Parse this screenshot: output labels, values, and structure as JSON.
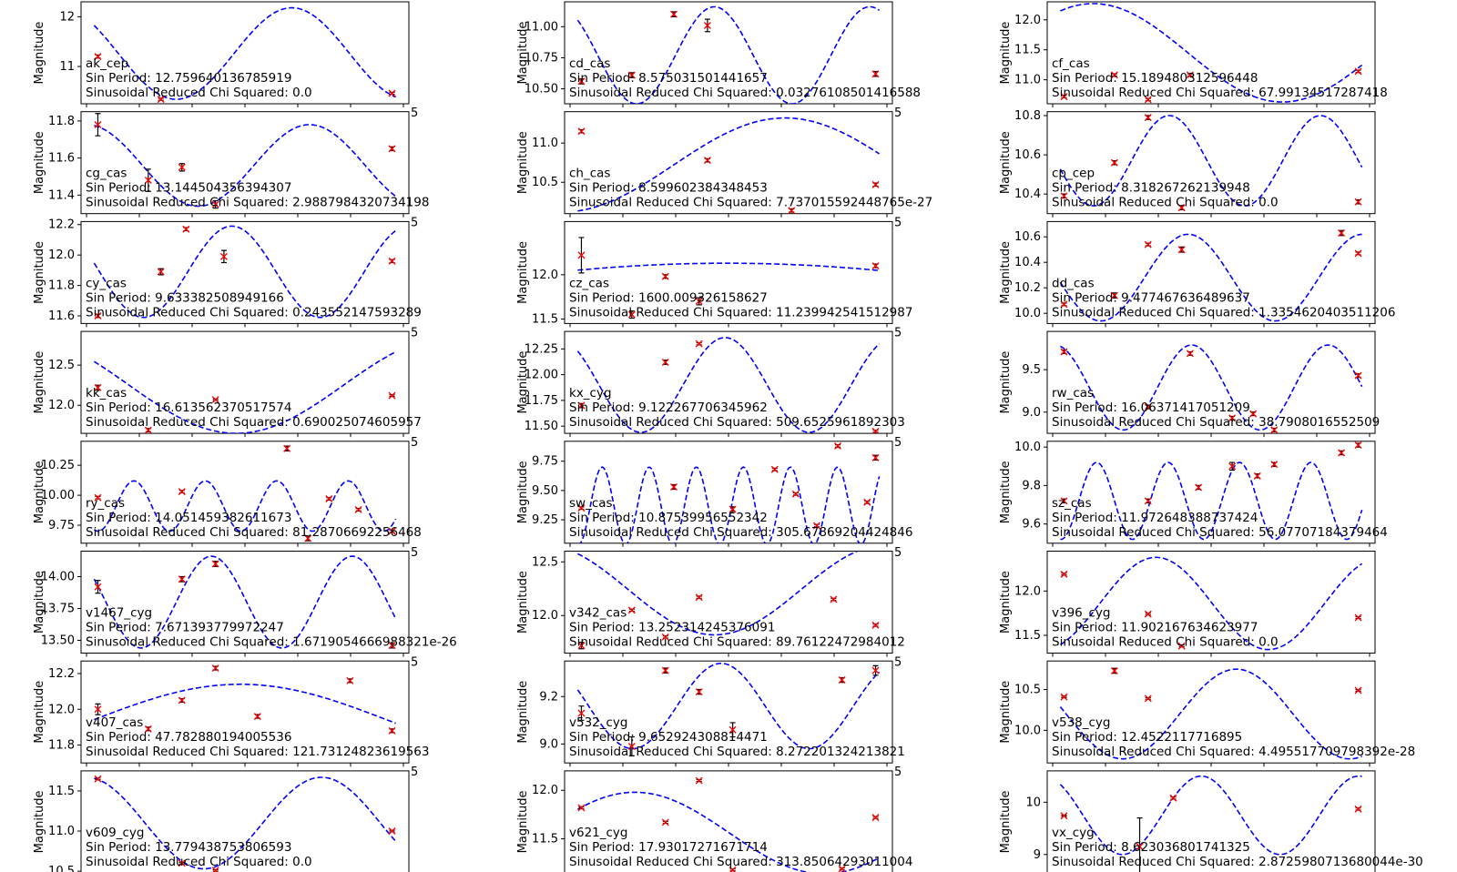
{
  "figure": {
    "ylabel": "Magnitude",
    "colors": {
      "model": "#0000ff",
      "points": "#ff0000",
      "errorbar": "#000000",
      "axes": "#000000"
    },
    "axis_corner_label": "5",
    "marker": "x-cross",
    "model_style": "dashed-sinusoid"
  },
  "chart_data": [
    {
      "type": "scatter",
      "star": "ak_cep",
      "period_text": "Sin Period: 12.759640136785919",
      "chi_text": "Sinusoidal Reduced Chi Squared: 0.0",
      "x": [
        0,
        1.5,
        7
      ],
      "y": [
        11.2,
        10.34,
        10.46
      ],
      "err": [
        0.03,
        0.02,
        0.02
      ],
      "ylim": [
        10.25,
        12.3
      ],
      "yticks": [
        11,
        12
      ],
      "ytick_labels": [
        "11",
        "12"
      ],
      "model": {
        "period": 5.5,
        "amp": 0.92,
        "mean": 11.26,
        "phase": -3.7
      }
    },
    {
      "type": "scatter",
      "star": "cd_cas",
      "period_text": "Sin Period: 8.57503150144165​7",
      "chi_text": "Sinusoidal Reduced Chi Squared: 0.0327610850141658​8",
      "x": [
        0,
        1.2,
        2.2,
        3.0,
        7.0
      ],
      "y": [
        10.56,
        10.61,
        11.1,
        11.01,
        10.62
      ],
      "err": [
        0.02,
        0.02,
        0.02,
        0.05,
        0.02
      ],
      "ylim": [
        10.38,
        11.2
      ],
      "yticks": [
        10.5,
        10.75,
        11.0
      ],
      "ytick_labels": [
        "10.50",
        "10.75",
        "11.00"
      ],
      "model": {
        "period": 3.7,
        "amp": 0.39,
        "mean": 10.77,
        "phase": -3.8
      }
    },
    {
      "type": "scatter",
      "star": "cf_cas",
      "period_text": "Sin Period: 15.189480312596448",
      "chi_text": "Sinusoidal Reduced Chi Squared: 67.99134517287418",
      "x": [
        0,
        1.2,
        2.0,
        3.0,
        7.0
      ],
      "y": [
        10.72,
        11.08,
        10.67,
        11.08,
        11.14
      ],
      "err": [
        0.02,
        0.02,
        0.02,
        0.02,
        0.02
      ],
      "ylim": [
        10.6,
        12.3
      ],
      "yticks": [
        11.0,
        11.5,
        12.0
      ],
      "ytick_labels": [
        "11.0",
        "11.5",
        "12.0"
      ],
      "model": {
        "period": 9.0,
        "amp": 0.82,
        "mean": 11.45,
        "phase": -5.2
      }
    },
    {
      "type": "scatter",
      "star": "cg_cas",
      "period_text": "Sin Period: 13.144504356394307",
      "chi_text": "Sinusoidal Reduced Chi Squared: 2.9887984320734198",
      "x": [
        0,
        1.2,
        2.0,
        2.8,
        7.0
      ],
      "y": [
        11.78,
        11.48,
        11.55,
        11.35,
        11.65
      ],
      "err": [
        0.06,
        0.06,
        0.02,
        0.02,
        0.01
      ],
      "ylim": [
        11.3,
        11.85
      ],
      "yticks": [
        11.4,
        11.6,
        11.8
      ],
      "ytick_labels": [
        "11.4",
        "11.6",
        "11.8"
      ],
      "model": {
        "period": 5.3,
        "amp": 0.22,
        "mean": 11.56,
        "phase": -4.4
      }
    },
    {
      "type": "scatter",
      "star": "ch_cas",
      "period_text": "Sin Period: 8.599602384348453",
      "chi_text": "Sinusoidal Reduced Chi Squared: 7.737015592448765e-27",
      "x": [
        0,
        3.0,
        5.0,
        7.0
      ],
      "y": [
        11.15,
        10.78,
        10.14,
        10.47
      ],
      "err": [
        0.02,
        0.02,
        0.02,
        0.02
      ],
      "ylim": [
        10.1,
        11.4
      ],
      "yticks": [
        10.5,
        11.0
      ],
      "ytick_labels": [
        "10.5",
        "11.0"
      ],
      "model": {
        "period": 10.6,
        "amp": 0.6,
        "mean": 10.72,
        "phase": -1.3
      }
    },
    {
      "type": "scatter",
      "star": "cp_cep",
      "period_text": "Sin Period: 8.318267262139948",
      "chi_text": "Sinusoidal Reduced Chi Squared: 0.0",
      "x": [
        0,
        1.2,
        2.0,
        2.8,
        7.0
      ],
      "y": [
        10.39,
        10.56,
        10.79,
        10.33,
        10.36
      ],
      "err": [
        0.01,
        0.01,
        0.01,
        0.01,
        0.01
      ],
      "ylim": [
        10.3,
        10.82
      ],
      "yticks": [
        10.4,
        10.6,
        10.8
      ],
      "ytick_labels": [
        "10.4",
        "10.6",
        "10.8"
      ],
      "model": {
        "period": 3.6,
        "amp": 0.23,
        "mean": 10.57,
        "phase": -2.8
      }
    },
    {
      "type": "scatter",
      "star": "cy_cas",
      "period_text": "Sin Period: 9.633382508949166",
      "chi_text": "Sinusoidal Reduced Chi Squared: 0.2435521475932​89",
      "x": [
        0,
        1.5,
        2.1,
        3.0,
        7.0
      ],
      "y": [
        11.6,
        11.89,
        12.17,
        11.99,
        11.96
      ],
      "err": [
        0.01,
        0.02,
        0.01,
        0.04,
        0.01
      ],
      "ylim": [
        11.55,
        12.22
      ],
      "yticks": [
        11.6,
        11.8,
        12.0,
        12.2
      ],
      "ytick_labels": [
        "11.6",
        "11.8",
        "12.0",
        "12.2"
      ],
      "model": {
        "period": 4.2,
        "amp": 0.3,
        "mean": 11.89,
        "phase": -3.2
      }
    },
    {
      "type": "scatter",
      "star": "cz_cas",
      "period_text": "Sin Period: 1600.009326158627",
      "chi_text": "Sinusoidal Reduced Chi Squared: 11.239942541512987",
      "x": [
        0,
        1.2,
        2.0,
        2.8,
        7.0
      ],
      "y": [
        12.22,
        11.55,
        11.98,
        11.7,
        12.1
      ],
      "err": [
        0.2,
        0.04,
        0.02,
        0.04,
        0.02
      ],
      "ylim": [
        11.45,
        12.6
      ],
      "yticks": [
        11.5,
        12.0
      ],
      "ytick_labels": [
        "11.5",
        "12.0"
      ],
      "model": {
        "period": 35,
        "amp": 0.4,
        "mean": 11.73,
        "phase": 0.95
      }
    },
    {
      "type": "scatter",
      "star": "dd_cas",
      "period_text": "Sin Period: 9.477467636489637",
      "chi_text": "Sinusoidal Reduced Chi Squared: 1.3354620403511206",
      "x": [
        0,
        1.2,
        2.0,
        2.8,
        6.6,
        7.0
      ],
      "y": [
        10.07,
        10.14,
        10.54,
        10.5,
        10.63,
        10.47
      ],
      "err": [
        0.01,
        0.02,
        0.01,
        0.02,
        0.02,
        0.01
      ],
      "ylim": [
        9.92,
        10.72
      ],
      "yticks": [
        10.0,
        10.2,
        10.4,
        10.6
      ],
      "ytick_labels": [
        "10.0",
        "10.2",
        "10.4",
        "10.6"
      ],
      "model": {
        "period": 4.15,
        "amp": 0.34,
        "mean": 10.28,
        "phase": -2.9
      }
    },
    {
      "type": "scatter",
      "star": "kk_cas",
      "period_text": "Sin Period: 16.613562370517574",
      "chi_text": "Sinusoidal Reduced Chi Squared: 0.690025074605957",
      "x": [
        0,
        1.2,
        2.8,
        7.0
      ],
      "y": [
        12.22,
        11.69,
        12.07,
        12.12
      ],
      "err": [
        0.03,
        0.02,
        0.01,
        0.01
      ],
      "ylim": [
        11.65,
        12.92
      ],
      "yticks": [
        12.0,
        12.5
      ],
      "ytick_labels": [
        "12.0",
        "12.5"
      ],
      "model": {
        "period": 10.2,
        "amp": 0.6,
        "mean": 12.25,
        "phase": -3.6
      }
    },
    {
      "type": "scatter",
      "star": "kx_cyg",
      "period_text": "Sin Period: 9.122267706345962",
      "chi_text": "Sinusoidal Reduced Chi Squared: 509.6525961892303",
      "x": [
        0,
        2.0,
        2.8,
        7.0
      ],
      "y": [
        11.7,
        12.12,
        12.3,
        11.45
      ],
      "err": [
        0.02,
        0.02,
        0.01,
        0.01
      ],
      "ylim": [
        11.43,
        12.42
      ],
      "yticks": [
        11.5,
        11.75,
        12.0,
        12.25
      ],
      "ytick_labels": [
        "11.50",
        "11.75",
        "12.00",
        "12.25"
      ],
      "model": {
        "period": 4.0,
        "amp": 0.46,
        "mean": 11.9,
        "phase": -3.8
      }
    },
    {
      "type": "scatter",
      "star": "rw_cas",
      "period_text": "Sin Period: 16.063714170512​09",
      "chi_text": "Sinusoidal Reduced Chi Squared: 38.7908016552509",
      "x": [
        0,
        2.0,
        3.0,
        4.0,
        4.5,
        5.0,
        7.0
      ],
      "y": [
        9.71,
        9.06,
        9.69,
        8.93,
        8.98,
        8.79,
        9.43
      ],
      "err": [
        0.02,
        0.02,
        0.02,
        0.02,
        0.02,
        0.02,
        0.02
      ],
      "ylim": [
        8.75,
        9.95
      ],
      "yticks": [
        9.0,
        9.5
      ],
      "ytick_labels": [
        "9.0",
        "9.5"
      ],
      "model": {
        "period": 3.25,
        "amp": 0.5,
        "mean": 9.29,
        "phase": -4.3
      }
    },
    {
      "type": "scatter",
      "star": "ry_cas",
      "period_text": "Sin Period: 14.05145938261167​3",
      "chi_text": "Sinusoidal Reduced Chi Squared: 81.28706692256468",
      "x": [
        0,
        2.0,
        4.5,
        5.0,
        5.5,
        6.2,
        7.0
      ],
      "y": [
        9.98,
        10.03,
        10.39,
        9.64,
        9.97,
        9.88,
        9.7
      ],
      "err": [
        0.01,
        0.01,
        0.02,
        0.02,
        0.01,
        0.01,
        0.01
      ],
      "ylim": [
        9.6,
        10.45
      ],
      "yticks": [
        9.75,
        10.0,
        10.25
      ],
      "ytick_labels": [
        "9.75",
        "10.00",
        "10.25"
      ],
      "model": {
        "period": 1.7,
        "amp": 0.21,
        "mean": 9.91,
        "phase": -1.6
      }
    },
    {
      "type": "scatter",
      "star": "sw_cas",
      "period_text": "Sin Period: 10.875399565523​42",
      "chi_text": "Sinusoidal Reduced Chi Squared: 305.67869204424846",
      "x": [
        0,
        2.2,
        3.6,
        4.6,
        5.1,
        5.6,
        6.1,
        6.8,
        7.0
      ],
      "y": [
        9.35,
        9.53,
        9.34,
        9.68,
        9.47,
        9.2,
        9.88,
        9.4,
        9.78
      ],
      "err": [
        0.01,
        0.02,
        0.02,
        0.01,
        0.01,
        0.01,
        0.01,
        0.01,
        0.02
      ],
      "ylim": [
        9.05,
        9.92
      ],
      "yticks": [
        9.25,
        9.5,
        9.75
      ],
      "ytick_labels": [
        "9.25",
        "9.50",
        "9.75"
      ],
      "model": {
        "period": 1.12,
        "amp": 0.33,
        "mean": 9.37,
        "phase": -1.2
      }
    },
    {
      "type": "scatter",
      "star": "sz_cas",
      "period_text": "Sin Period: 11.972648388737424",
      "chi_text": "Sinusoidal Reduced Chi Squared: 56.07707184379464",
      "x": [
        0,
        2.0,
        3.2,
        4.0,
        4.6,
        5.0,
        6.6,
        7.0
      ],
      "y": [
        9.72,
        9.72,
        9.79,
        9.9,
        9.85,
        9.91,
        9.97,
        10.01
      ],
      "err": [
        0.01,
        0.01,
        0.01,
        0.02,
        0.01,
        0.01,
        0.01,
        0.01
      ],
      "ylim": [
        9.5,
        10.03
      ],
      "yticks": [
        9.6,
        9.8,
        10.0
      ],
      "ytick_labels": [
        "9.6",
        "9.8",
        "10.0"
      ],
      "model": {
        "period": 1.7,
        "amp": 0.2,
        "mean": 9.72,
        "phase": -1.3
      }
    },
    {
      "type": "scatter",
      "star": "v1467_cyg",
      "period_text": "Sin Period: 7.671393779972247",
      "chi_text": "Sinusoidal Reduced Chi Squared: 1.6719054666988321e-26",
      "x": [
        0,
        2.0,
        2.8,
        7.0
      ],
      "y": [
        13.92,
        13.98,
        14.1,
        13.46
      ],
      "err": [
        0.05,
        0.02,
        0.02,
        0.02
      ],
      "ylim": [
        13.4,
        14.2
      ],
      "yticks": [
        13.5,
        13.75,
        14.0
      ],
      "ytick_labels": [
        "13.50",
        "13.75",
        "14.00"
      ],
      "model": {
        "period": 3.35,
        "amp": 0.36,
        "mean": 13.8,
        "phase": -3.5
      }
    },
    {
      "type": "scatter",
      "star": "v342_cas",
      "period_text": "Sin Period: 13.252314245376091",
      "chi_text": "Sinusoidal Reduced Chi Squared: 89.76122472984012",
      "x": [
        0,
        1.2,
        2.0,
        2.8,
        6.0,
        7.0
      ],
      "y": [
        11.72,
        12.05,
        11.8,
        12.17,
        12.15,
        11.91
      ],
      "err": [
        0.03,
        0.01,
        0.01,
        0.01,
        0.01,
        0.01
      ],
      "ylim": [
        11.65,
        12.6
      ],
      "yticks": [
        12.0,
        12.5
      ],
      "ytick_labels": [
        "12.0",
        "12.5"
      ],
      "model": {
        "period": 8.2,
        "amp": 0.42,
        "mean": 12.24,
        "phase": -4.0
      }
    },
    {
      "type": "scatter",
      "star": "v396_cyg",
      "period_text": "Sin Period: 11.902167634623977",
      "chi_text": "Sinusoidal Reduced Chi Squared: 0.0",
      "x": [
        0,
        2.0,
        2.8,
        7.0
      ],
      "y": [
        12.19,
        11.74,
        11.38,
        11.7
      ],
      "err": [
        0.01,
        0.01,
        0.01,
        0.01
      ],
      "ylim": [
        11.3,
        12.45
      ],
      "yticks": [
        11.5,
        12.0
      ],
      "ytick_labels": [
        "11.5",
        "12.0"
      ],
      "model": {
        "period": 5.35,
        "amp": 0.52,
        "mean": 11.86,
        "phase": -1.0
      }
    },
    {
      "type": "scatter",
      "star": "v407_cas",
      "period_text": "Sin Period: 47.782880194005536",
      "chi_text": "Sinusoidal Reduced Chi Squared: 121.73124823619563",
      "x": [
        0,
        1.2,
        2.0,
        2.8,
        3.8,
        6.0,
        7.0
      ],
      "y": [
        12.0,
        11.89,
        12.05,
        12.23,
        11.96,
        12.16,
        11.88
      ],
      "err": [
        0.03,
        0.01,
        0.01,
        0.01,
        0.01,
        0.01,
        0.01
      ],
      "ylim": [
        11.7,
        12.27
      ],
      "yticks": [
        11.8,
        12.0,
        12.2
      ],
      "ytick_labels": [
        "11.8",
        "12.0",
        "12.2"
      ],
      "model": {
        "period": 14,
        "amp": 0.2,
        "mean": 11.94,
        "phase": 0.05
      }
    },
    {
      "type": "scatter",
      "star": "v532_cyg",
      "period_text": "Sin Period: 9.652924308814471",
      "chi_text": "Sinusoidal Reduced Chi Squared: 8.272201324213821",
      "x": [
        0,
        1.2,
        2.0,
        2.8,
        3.6,
        6.2,
        7.0
      ],
      "y": [
        9.13,
        8.99,
        9.31,
        9.22,
        9.06,
        9.27,
        9.31
      ],
      "err": [
        0.03,
        0.04,
        0.01,
        0.01,
        0.03,
        0.01,
        0.02
      ],
      "ylim": [
        8.92,
        9.35
      ],
      "yticks": [
        9.0,
        9.2
      ],
      "ytick_labels": [
        "9.0",
        "9.2"
      ],
      "model": {
        "period": 4.2,
        "amp": 0.18,
        "mean": 9.16,
        "phase": -3.4
      }
    },
    {
      "type": "scatter",
      "star": "v538_cyg",
      "period_text": "Sin Period: 12.452211771689​5",
      "chi_text": "Sinusoidal Reduced Chi Squared: 4.495517709798392e-28",
      "x": [
        0,
        1.2,
        2.0,
        7.0
      ],
      "y": [
        10.41,
        10.73,
        10.39,
        10.49
      ],
      "err": [
        0.01,
        0.03,
        0.01,
        0.01
      ],
      "ylim": [
        9.6,
        10.85
      ],
      "yticks": [
        10.0,
        10.5
      ],
      "ytick_labels": [
        "10.0",
        "10.5"
      ],
      "model": {
        "period": 5.4,
        "amp": 0.55,
        "mean": 10.2,
        "phase": -3.2
      }
    },
    {
      "type": "scatter",
      "star": "v609_cyg",
      "period_text": "Sin Period: 13.779438753806593",
      "chi_text": "Sinusoidal Reduced Chi Squared: 0.0",
      "x": [
        0,
        2.0,
        2.8,
        7.0
      ],
      "y": [
        11.65,
        10.6,
        10.51,
        11.0
      ],
      "err": [
        0.01,
        0.01,
        0.01,
        0.01
      ],
      "ylim": [
        10.48,
        11.75
      ],
      "yticks": [
        10.5,
        11.0,
        11.5
      ],
      "ytick_labels": [
        "10.5",
        "11.0",
        "11.5"
      ],
      "model": {
        "period": 5.6,
        "amp": 0.57,
        "mean": 11.1,
        "phase": -4.4
      }
    },
    {
      "type": "scatter",
      "star": "v621_cyg",
      "period_text": "Sin Period: 17.930172716717​14",
      "chi_text": "Sinusoidal Reduced Chi Squared: 313.85064293011004",
      "x": [
        0,
        2.0,
        2.8,
        3.6,
        6.2,
        7.0
      ],
      "y": [
        11.82,
        11.67,
        12.1,
        11.18,
        11.19,
        11.72
      ],
      "err": [
        0.01,
        0.01,
        0.01,
        0.01,
        0.01,
        0.01
      ],
      "ylim": [
        11.15,
        12.2
      ],
      "yticks": [
        11.5,
        12.0
      ],
      "ytick_labels": [
        "11.5",
        "12.0"
      ],
      "model": {
        "period": 9.0,
        "amp": 0.42,
        "mean": 11.56,
        "phase": -5.6
      }
    },
    {
      "type": "scatter",
      "star": "vx_cyg",
      "period_text": "Sin Period: 8.623036801741325",
      "chi_text": "Sinusoidal Reduced Chi Squared: 2.8725980713680044e-30",
      "x": [
        0,
        1.8,
        2.6,
        7.0
      ],
      "y": [
        9.74,
        9.15,
        10.08,
        9.87
      ],
      "err": [
        0.01,
        0.55,
        0.02,
        0.02
      ],
      "ylim": [
        8.65,
        10.6
      ],
      "yticks": [
        9,
        10
      ],
      "ytick_labels": [
        "9",
        "10"
      ],
      "model": {
        "period": 3.75,
        "amp": 0.75,
        "mean": 9.75,
        "phase": -3.9
      }
    }
  ]
}
